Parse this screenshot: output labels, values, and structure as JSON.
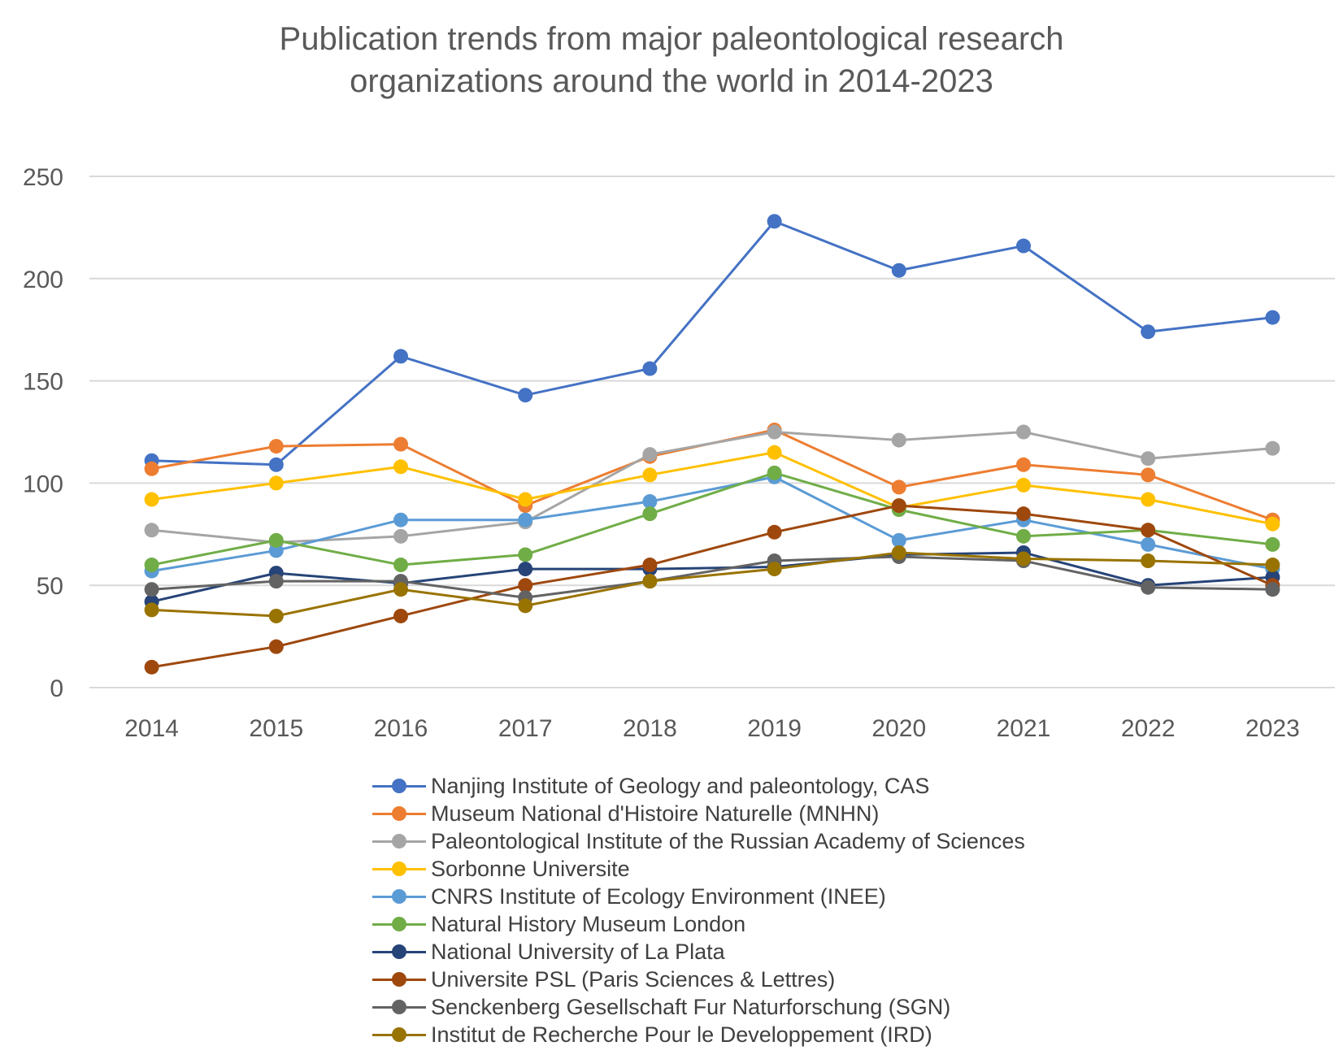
{
  "chart_data": {
    "type": "line",
    "title": "Publication trends from major paleontological research organizations around the world in 2014-2023",
    "title_lines": [
      "Publication trends from major paleontological research",
      "organizations around the world in 2014-2023"
    ],
    "xlabel": "",
    "ylabel": "",
    "categories": [
      "2014",
      "2015",
      "2016",
      "2017",
      "2018",
      "2019",
      "2020",
      "2021",
      "2022",
      "2023"
    ],
    "ylim": [
      0,
      250
    ],
    "yticks": [
      0,
      50,
      100,
      150,
      200,
      250
    ],
    "grid": true,
    "legend_position": "bottom",
    "series": [
      {
        "name": "Nanjing Institute of Geology and paleontology, CAS",
        "color": "#4472C4",
        "values": [
          111,
          109,
          162,
          143,
          156,
          228,
          204,
          216,
          174,
          181
        ]
      },
      {
        "name": "Museum National d'Histoire Naturelle (MNHN)",
        "color": "#ED7D31",
        "values": [
          107,
          118,
          119,
          89,
          113,
          126,
          98,
          109,
          104,
          82
        ]
      },
      {
        "name": "Paleontological Institute of the Russian Academy of Sciences",
        "color": "#A5A5A5",
        "values": [
          77,
          71,
          74,
          81,
          114,
          125,
          121,
          125,
          112,
          117
        ]
      },
      {
        "name": "Sorbonne Universite",
        "color": "#FFC000",
        "values": [
          92,
          100,
          108,
          92,
          104,
          115,
          88,
          99,
          92,
          80
        ]
      },
      {
        "name": "CNRS Institute of Ecology Environment (INEE)",
        "color": "#5B9BD5",
        "values": [
          57,
          67,
          82,
          82,
          91,
          103,
          72,
          82,
          70,
          58
        ]
      },
      {
        "name": "Natural History Museum London",
        "color": "#70AD47",
        "values": [
          60,
          72,
          60,
          65,
          85,
          105,
          87,
          74,
          77,
          70
        ]
      },
      {
        "name": "National University of La Plata",
        "color": "#264478",
        "values": [
          42,
          56,
          51,
          58,
          58,
          59,
          65,
          66,
          50,
          54
        ]
      },
      {
        "name": "Universite PSL (Paris Sciences & Lettres)",
        "color": "#9E480E",
        "values": [
          10,
          20,
          35,
          50,
          60,
          76,
          89,
          85,
          77,
          50
        ]
      },
      {
        "name": "Senckenberg Gesellschaft Fur Naturforschung (SGN)",
        "color": "#636363",
        "values": [
          48,
          52,
          52,
          44,
          52,
          62,
          64,
          62,
          49,
          48
        ]
      },
      {
        "name": "Institut de Recherche Pour le Developpement (IRD)",
        "color": "#997300",
        "values": [
          38,
          35,
          48,
          40,
          52,
          58,
          66,
          63,
          62,
          60
        ]
      }
    ]
  }
}
